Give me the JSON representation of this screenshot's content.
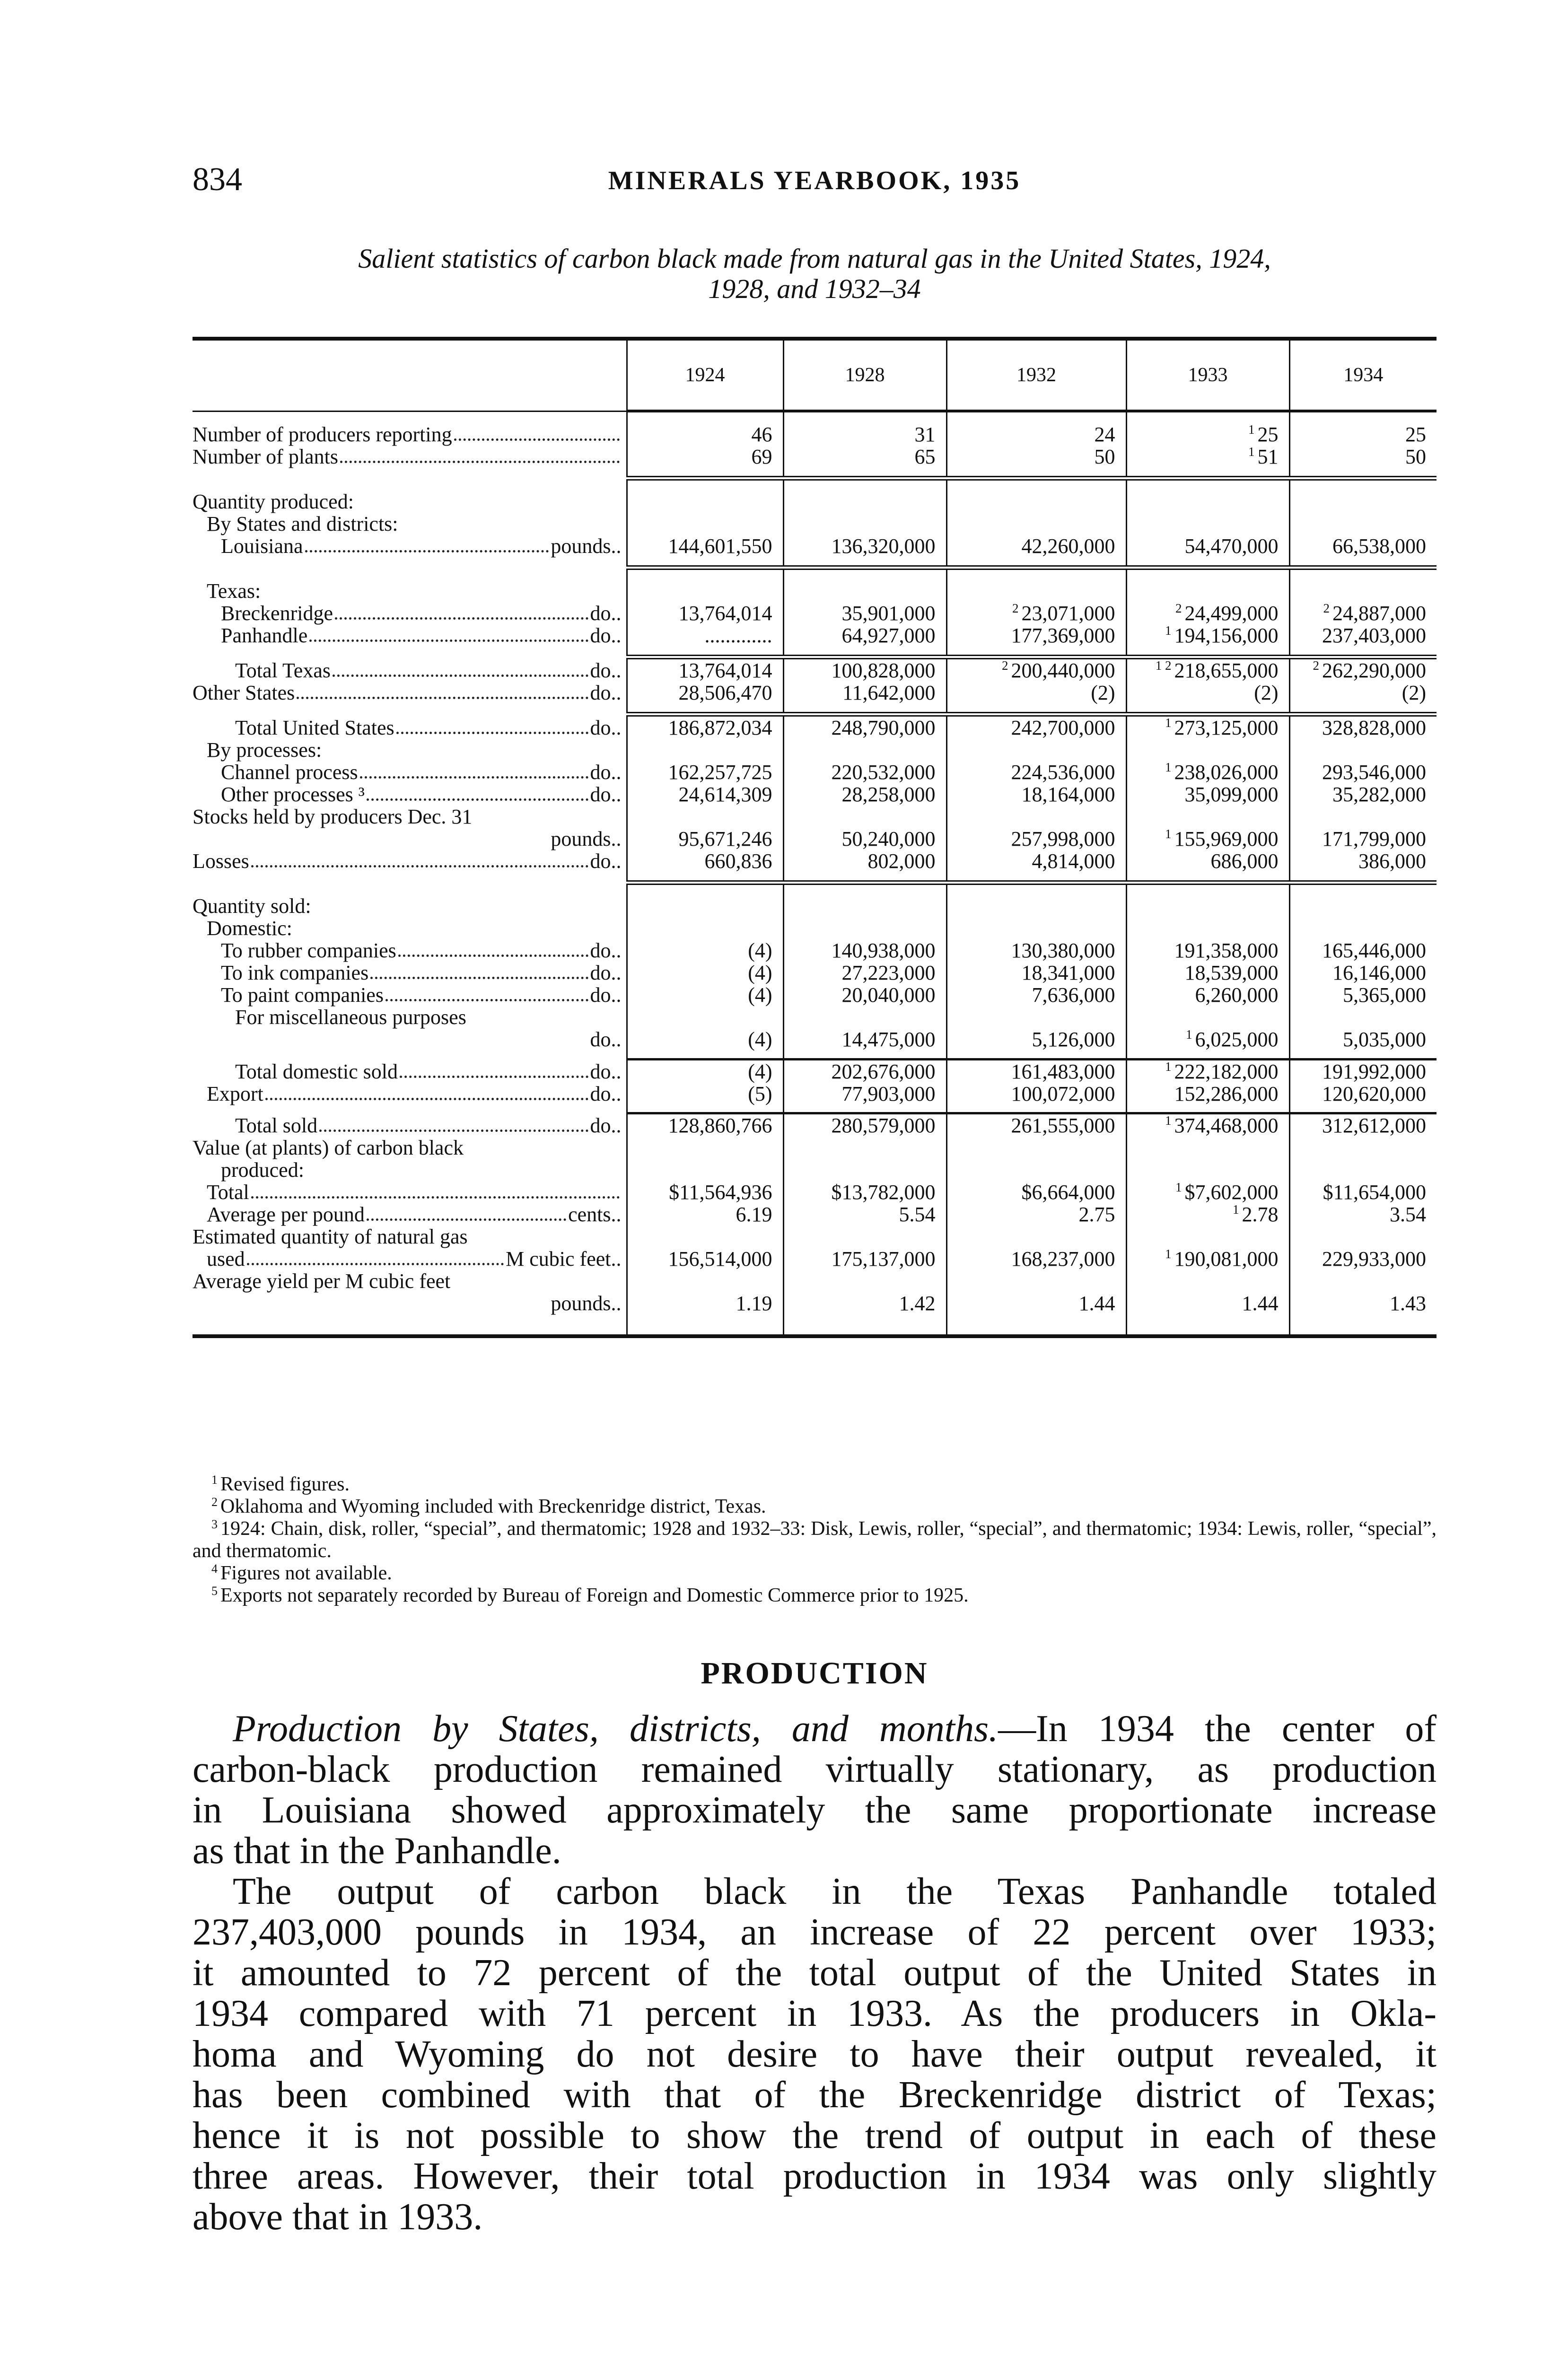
{
  "page_header": {
    "page_number": "834",
    "running_title": "MINERALS YEARBOOK, 1935"
  },
  "caption": {
    "line1": "Salient statistics of carbon black made from natural gas in the United States, 1924,",
    "line2": "1928, and 1932–34"
  },
  "table": {
    "columns": [
      "1924",
      "1928",
      "1932",
      "1933",
      "1934"
    ],
    "rows": [
      {
        "type": "sp"
      },
      {
        "label": "Number of producers reporting",
        "indent": 0,
        "leader": true,
        "cells": [
          {
            "v": "46"
          },
          {
            "v": "31"
          },
          {
            "v": "24"
          },
          {
            "n": "1",
            "v": "25"
          },
          {
            "v": "25"
          }
        ]
      },
      {
        "label": "Number of plants",
        "indent": 0,
        "leader": true,
        "cells": [
          {
            "v": "69"
          },
          {
            "v": "65"
          },
          {
            "v": "50"
          },
          {
            "n": "1",
            "v": "51"
          },
          {
            "v": "50"
          }
        ]
      },
      {
        "type": "rule"
      },
      {
        "type": "sp"
      },
      {
        "label": "Quantity produced:",
        "indent": 0
      },
      {
        "label": "By States and districts:",
        "indent": 1
      },
      {
        "label": "Louisiana",
        "unit": "pounds",
        "indent": 2,
        "leader": true,
        "cells": [
          {
            "v": "144,601,550"
          },
          {
            "v": "136,320,000"
          },
          {
            "v": "42,260,000"
          },
          {
            "v": "54,470,000"
          },
          {
            "v": "66,538,000"
          }
        ]
      },
      {
        "type": "rule"
      },
      {
        "type": "sp"
      },
      {
        "label": "Texas:",
        "indent": 1
      },
      {
        "label": "Breckenridge",
        "unit": "do",
        "indent": 2,
        "leader": true,
        "cells": [
          {
            "v": "13,764,014"
          },
          {
            "v": "35,901,000"
          },
          {
            "n": "2",
            "v": "23,071,000"
          },
          {
            "n": "2",
            "v": "24,499,000"
          },
          {
            "n": "2",
            "v": "24,887,000"
          }
        ]
      },
      {
        "label": "Panhandle",
        "unit": "do",
        "indent": 2,
        "leader": true,
        "cells": [
          {
            "v": "............."
          },
          {
            "v": "64,927,000"
          },
          {
            "v": "177,369,000"
          },
          {
            "n": "1",
            "v": "194,156,000"
          },
          {
            "v": "237,403,000"
          }
        ]
      },
      {
        "type": "rule"
      },
      {
        "label": "Total Texas",
        "unit": "do",
        "indent": 3,
        "leader": true,
        "cells": [
          {
            "v": "13,764,014"
          },
          {
            "v": "100,828,000"
          },
          {
            "n": "2",
            "v": "200,440,000"
          },
          {
            "n": "1 2",
            "v": "218,655,000"
          },
          {
            "n": "2",
            "v": "262,290,000"
          }
        ]
      },
      {
        "label": "Other States",
        "unit": "do",
        "indent": 0,
        "leader": true,
        "cells": [
          {
            "v": "28,506,470"
          },
          {
            "v": "11,642,000"
          },
          {
            "v": "(2)"
          },
          {
            "v": "(2)"
          },
          {
            "v": "(2)"
          }
        ]
      },
      {
        "type": "rule"
      },
      {
        "label": "Total United States",
        "unit": "do",
        "indent": 3,
        "leader": true,
        "cells": [
          {
            "v": "186,872,034"
          },
          {
            "v": "248,790,000"
          },
          {
            "v": "242,700,000"
          },
          {
            "n": "1",
            "v": "273,125,000"
          },
          {
            "v": "328,828,000"
          }
        ]
      },
      {
        "label": "By processes:",
        "indent": 1
      },
      {
        "label": "Channel process",
        "unit": "do",
        "indent": 2,
        "leader": true,
        "cells": [
          {
            "v": "162,257,725"
          },
          {
            "v": "220,532,000"
          },
          {
            "v": "224,536,000"
          },
          {
            "n": "1",
            "v": "238,026,000"
          },
          {
            "v": "293,546,000"
          }
        ]
      },
      {
        "label": "Other processes ³",
        "unit": "do",
        "indent": 2,
        "leader": true,
        "cells": [
          {
            "v": "24,614,309"
          },
          {
            "v": "28,258,000"
          },
          {
            "v": "18,164,000"
          },
          {
            "v": "35,099,000"
          },
          {
            "v": "35,282,000"
          }
        ]
      },
      {
        "label": "Stocks held by producers Dec. 31",
        "indent": 0
      },
      {
        "label": "",
        "unit": "pounds",
        "indent": 0,
        "leader": false,
        "cells": [
          {
            "v": "95,671,246"
          },
          {
            "v": "50,240,000"
          },
          {
            "v": "257,998,000"
          },
          {
            "n": "1",
            "v": "155,969,000"
          },
          {
            "v": "171,799,000"
          }
        ]
      },
      {
        "label": "Losses",
        "unit": "do",
        "indent": 0,
        "leader": true,
        "cells": [
          {
            "v": "660,836"
          },
          {
            "v": "802,000"
          },
          {
            "v": "4,814,000"
          },
          {
            "v": "686,000"
          },
          {
            "v": "386,000"
          }
        ]
      },
      {
        "type": "rule"
      },
      {
        "type": "sp"
      },
      {
        "label": "Quantity sold:",
        "indent": 0
      },
      {
        "label": "Domestic:",
        "indent": 1
      },
      {
        "label": "To rubber companies",
        "unit": "do",
        "indent": 2,
        "leader": true,
        "cells": [
          {
            "v": "(4)"
          },
          {
            "v": "140,938,000"
          },
          {
            "v": "130,380,000"
          },
          {
            "v": "191,358,000"
          },
          {
            "v": "165,446,000"
          }
        ]
      },
      {
        "label": "To ink companies",
        "unit": "do",
        "indent": 2,
        "leader": true,
        "cells": [
          {
            "v": "(4)"
          },
          {
            "v": "27,223,000"
          },
          {
            "v": "18,341,000"
          },
          {
            "v": "18,539,000"
          },
          {
            "v": "16,146,000"
          }
        ]
      },
      {
        "label": "To paint companies",
        "unit": "do",
        "indent": 2,
        "leader": true,
        "cells": [
          {
            "v": "(4)"
          },
          {
            "v": "20,040,000"
          },
          {
            "v": "7,636,000"
          },
          {
            "v": "6,260,000"
          },
          {
            "v": "5,365,000"
          }
        ]
      },
      {
        "label": "For miscellaneous purposes",
        "indent": 3
      },
      {
        "label": "",
        "unit": "do",
        "indent": 0,
        "leader": false,
        "cells": [
          {
            "v": "(4)"
          },
          {
            "v": "14,475,000"
          },
          {
            "v": "5,126,000"
          },
          {
            "n": "1",
            "v": "6,025,000"
          },
          {
            "v": "5,035,000"
          }
        ]
      },
      {
        "type": "srule"
      },
      {
        "label": "Total domestic sold",
        "unit": "do",
        "indent": 3,
        "leader": true,
        "cells": [
          {
            "v": "(4)"
          },
          {
            "v": "202,676,000"
          },
          {
            "v": "161,483,000"
          },
          {
            "n": "1",
            "v": "222,182,000"
          },
          {
            "v": "191,992,000"
          }
        ]
      },
      {
        "label": "Export",
        "unit": "do",
        "indent": 1,
        "leader": true,
        "cells": [
          {
            "v": "(5)"
          },
          {
            "v": "77,903,000"
          },
          {
            "v": "100,072,000"
          },
          {
            "v": "152,286,000"
          },
          {
            "v": "120,620,000"
          }
        ]
      },
      {
        "type": "srule"
      },
      {
        "label": "Total sold",
        "unit": "do",
        "indent": 3,
        "leader": true,
        "cells": [
          {
            "v": "128,860,766"
          },
          {
            "v": "280,579,000"
          },
          {
            "v": "261,555,000"
          },
          {
            "n": "1",
            "v": "374,468,000"
          },
          {
            "v": "312,612,000"
          }
        ]
      },
      {
        "label": "Value (at plants) of carbon black",
        "indent": 0
      },
      {
        "label": "produced:",
        "indent": 2
      },
      {
        "label": "Total",
        "indent": 1,
        "leader": true,
        "cells": [
          {
            "v": "$11,564,936"
          },
          {
            "v": "$13,782,000"
          },
          {
            "v": "$6,664,000"
          },
          {
            "n": "1",
            "v": "$7,602,000"
          },
          {
            "v": "$11,654,000"
          }
        ]
      },
      {
        "label": "Average per pound",
        "unit": "cents",
        "indent": 1,
        "leader": true,
        "cells": [
          {
            "v": "6.19"
          },
          {
            "v": "5.54"
          },
          {
            "v": "2.75"
          },
          {
            "n": "1",
            "v": "2.78"
          },
          {
            "v": "3.54"
          }
        ]
      },
      {
        "label": "Estimated quantity of natural gas",
        "indent": 0
      },
      {
        "label": "used",
        "unit": "M cubic feet",
        "indent": 1,
        "leader": true,
        "cells": [
          {
            "v": "156,514,000"
          },
          {
            "v": "175,137,000"
          },
          {
            "v": "168,237,000"
          },
          {
            "n": "1",
            "v": "190,081,000"
          },
          {
            "v": "229,933,000"
          }
        ]
      },
      {
        "label": "Average yield per M cubic feet",
        "indent": 0
      },
      {
        "label": "",
        "unit": "pounds",
        "indent": 0,
        "leader": false,
        "cells": [
          {
            "v": "1.19"
          },
          {
            "v": "1.42"
          },
          {
            "v": "1.44"
          },
          {
            "v": "1.44"
          },
          {
            "v": "1.43"
          }
        ]
      },
      {
        "type": "end"
      }
    ]
  },
  "footnotes": [
    {
      "n": "1",
      "text": "Revised figures."
    },
    {
      "n": "2",
      "text": "Oklahoma and Wyoming included with Breckenridge district, Texas."
    },
    {
      "n": "3",
      "text": "1924: Chain, disk, roller, “special”, and thermatomic; 1928 and 1932–33: Disk, Lewis, roller, “special”, and thermatomic; 1934: Lewis, roller, “special”, and thermatomic."
    },
    {
      "n": "4",
      "text": "Figures not available."
    },
    {
      "n": "5",
      "text": "Exports not separately recorded by Bureau of Foreign and Domestic Commerce prior to 1925."
    }
  ],
  "section": {
    "heading": "PRODUCTION",
    "paragraph1": {
      "lead_italic": "Production by States, districts, and months.",
      "lines": [
        "—In 1934 the center of",
        "carbon-black production remained virtually stationary, as production",
        "in Louisiana showed approximately the same proportionate increase",
        "as that in the Panhandle."
      ]
    },
    "paragraph2": {
      "lines": [
        "The output of carbon black in the Texas Panhandle totaled",
        "237,403,000 pounds in 1934, an increase of 22 percent over 1933;",
        "it amounted to 72 percent of the total output of the United States in",
        "1934 compared with 71 percent in 1933.  As the producers in Okla-",
        "homa and Wyoming do not desire to have their output revealed, it",
        "has been combined with that of the Breckenridge district of Texas;",
        "hence it is not possible to show the trend of output in each of these",
        "three areas.  However, their total production in 1934 was only slightly",
        "above that in 1933."
      ]
    }
  }
}
